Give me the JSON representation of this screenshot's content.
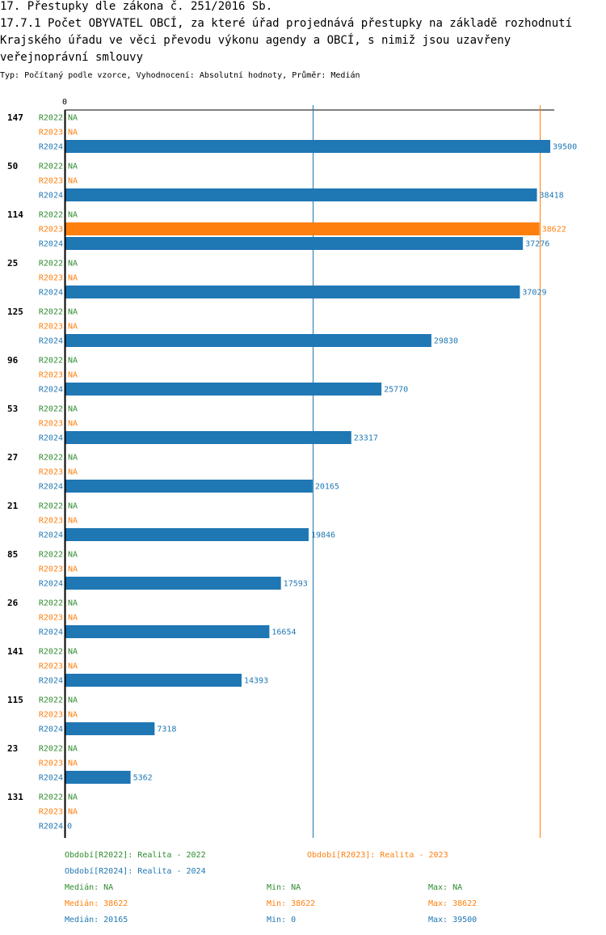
{
  "header": {
    "title": "17. Přestupky dle zákona č. 251/2016 Sb.",
    "subtitle": "17.7.1 Počet OBYVATEL OBCÍ, za které úřad projednává přestupky na základě rozhodnutí Krajského úřadu ve věci převodu výkonu agendy a OBCÍ, s nimiž jsou uzavřeny veřejnoprávní smlouvy",
    "meta": "Typ: Počítaný podle vzorce, Vyhodnocení: Absolutní hodnoty, Průměr: Medián"
  },
  "colors": {
    "R2022": "#2e8b2e",
    "R2023": "#ff7f0e",
    "R2024": "#1f77b4"
  },
  "chart_data": {
    "type": "bar",
    "orientation": "horizontal",
    "axis_zero_label": "0",
    "xlim": [
      0,
      39500
    ],
    "na_label": "NA",
    "categories": [
      "147",
      "50",
      "114",
      "25",
      "125",
      "96",
      "53",
      "27",
      "21",
      "85",
      "26",
      "141",
      "115",
      "23",
      "131"
    ],
    "series": [
      {
        "name": "R2022",
        "values": [
          null,
          null,
          null,
          null,
          null,
          null,
          null,
          null,
          null,
          null,
          null,
          null,
          null,
          null,
          null
        ]
      },
      {
        "name": "R2023",
        "values": [
          null,
          null,
          38622,
          null,
          null,
          null,
          null,
          null,
          null,
          null,
          null,
          null,
          null,
          null,
          null
        ]
      },
      {
        "name": "R2024",
        "values": [
          39500,
          38418,
          37276,
          37029,
          29830,
          25770,
          23317,
          20165,
          19846,
          17593,
          16654,
          14393,
          7318,
          5362,
          0
        ]
      }
    ],
    "median_lines": [
      {
        "series": "R2024",
        "value": 20165
      },
      {
        "series": "R2023",
        "value": 38622
      }
    ]
  },
  "legend": {
    "p2022": "Období[R2022]: Realita - 2022",
    "p2023": "Období[R2023]: Realita - 2023",
    "p2024": "Období[R2024]: Realita - 2024",
    "stats": [
      {
        "series": "R2022",
        "median": "Medián: NA",
        "min": "Min: NA",
        "max": "Max: NA"
      },
      {
        "series": "R2023",
        "median": "Medián: 38622",
        "min": "Min: 38622",
        "max": "Max: 38622"
      },
      {
        "series": "R2024",
        "median": "Medián: 20165",
        "min": "Min: 0",
        "max": "Max: 39500"
      }
    ]
  }
}
